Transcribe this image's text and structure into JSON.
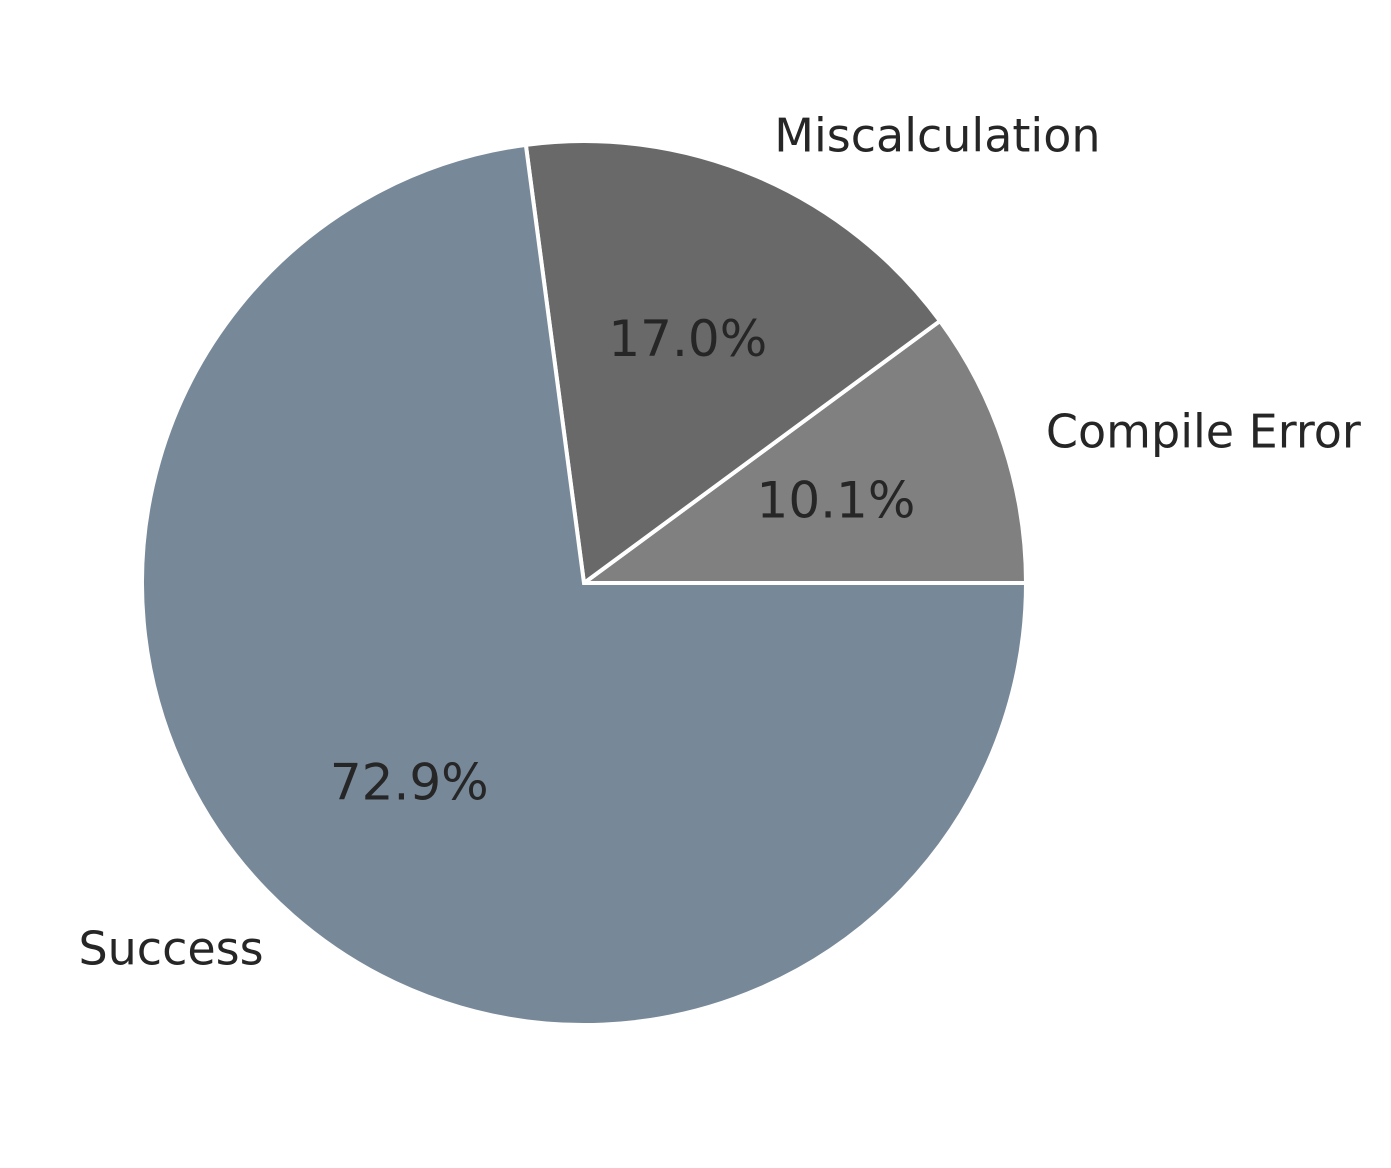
{
  "chart_data": {
    "type": "pie",
    "title": "",
    "slices": [
      {
        "label": "Compile Error",
        "value": 10.1,
        "pct_label": "10.1%",
        "color": "#808080"
      },
      {
        "label": "Miscalculation",
        "value": 17.0,
        "pct_label": "17.0%",
        "color": "#696969"
      },
      {
        "label": "Success",
        "value": 72.9,
        "pct_label": "72.9%",
        "color": "#778899"
      }
    ],
    "start_angle_deg": 0,
    "direction": "counterclockwise",
    "edge_color": "#ffffff",
    "text_color": "#262626"
  }
}
